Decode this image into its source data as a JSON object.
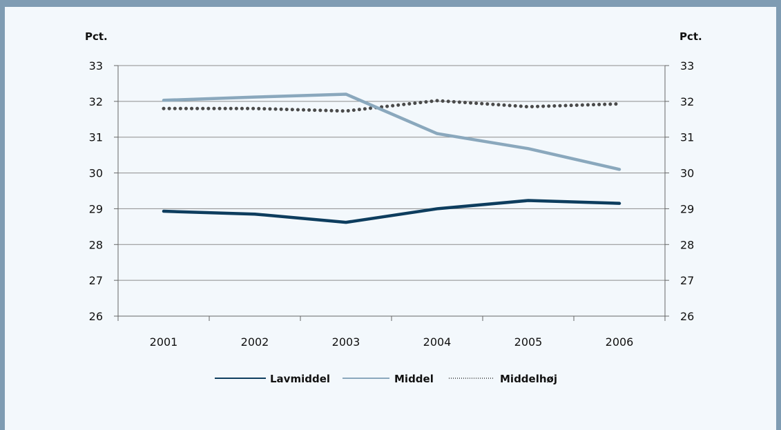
{
  "chart_data": {
    "type": "line",
    "categories": [
      "2001",
      "2002",
      "2003",
      "2004",
      "2005",
      "2006"
    ],
    "y_unit_left": "Pct.",
    "y_unit_right": "Pct.",
    "ylim": [
      26,
      33
    ],
    "yticks": [
      "26",
      "27",
      "28",
      "29",
      "30",
      "31",
      "32",
      "33"
    ],
    "grid": true,
    "legend_position": "bottom",
    "series": [
      {
        "name": "Lavmiddel",
        "values": [
          28.93,
          28.85,
          28.62,
          29.0,
          29.23,
          29.15
        ],
        "color": "#0d3d5e",
        "style": "solid"
      },
      {
        "name": "Middel",
        "values": [
          32.03,
          32.12,
          32.2,
          31.1,
          30.68,
          30.1
        ],
        "color": "#8aa8bd",
        "style": "solid"
      },
      {
        "name": "Middelhøj",
        "values": [
          31.8,
          31.8,
          31.73,
          32.02,
          31.85,
          31.93
        ],
        "color": "#4a4a4a",
        "style": "dotted"
      }
    ]
  }
}
